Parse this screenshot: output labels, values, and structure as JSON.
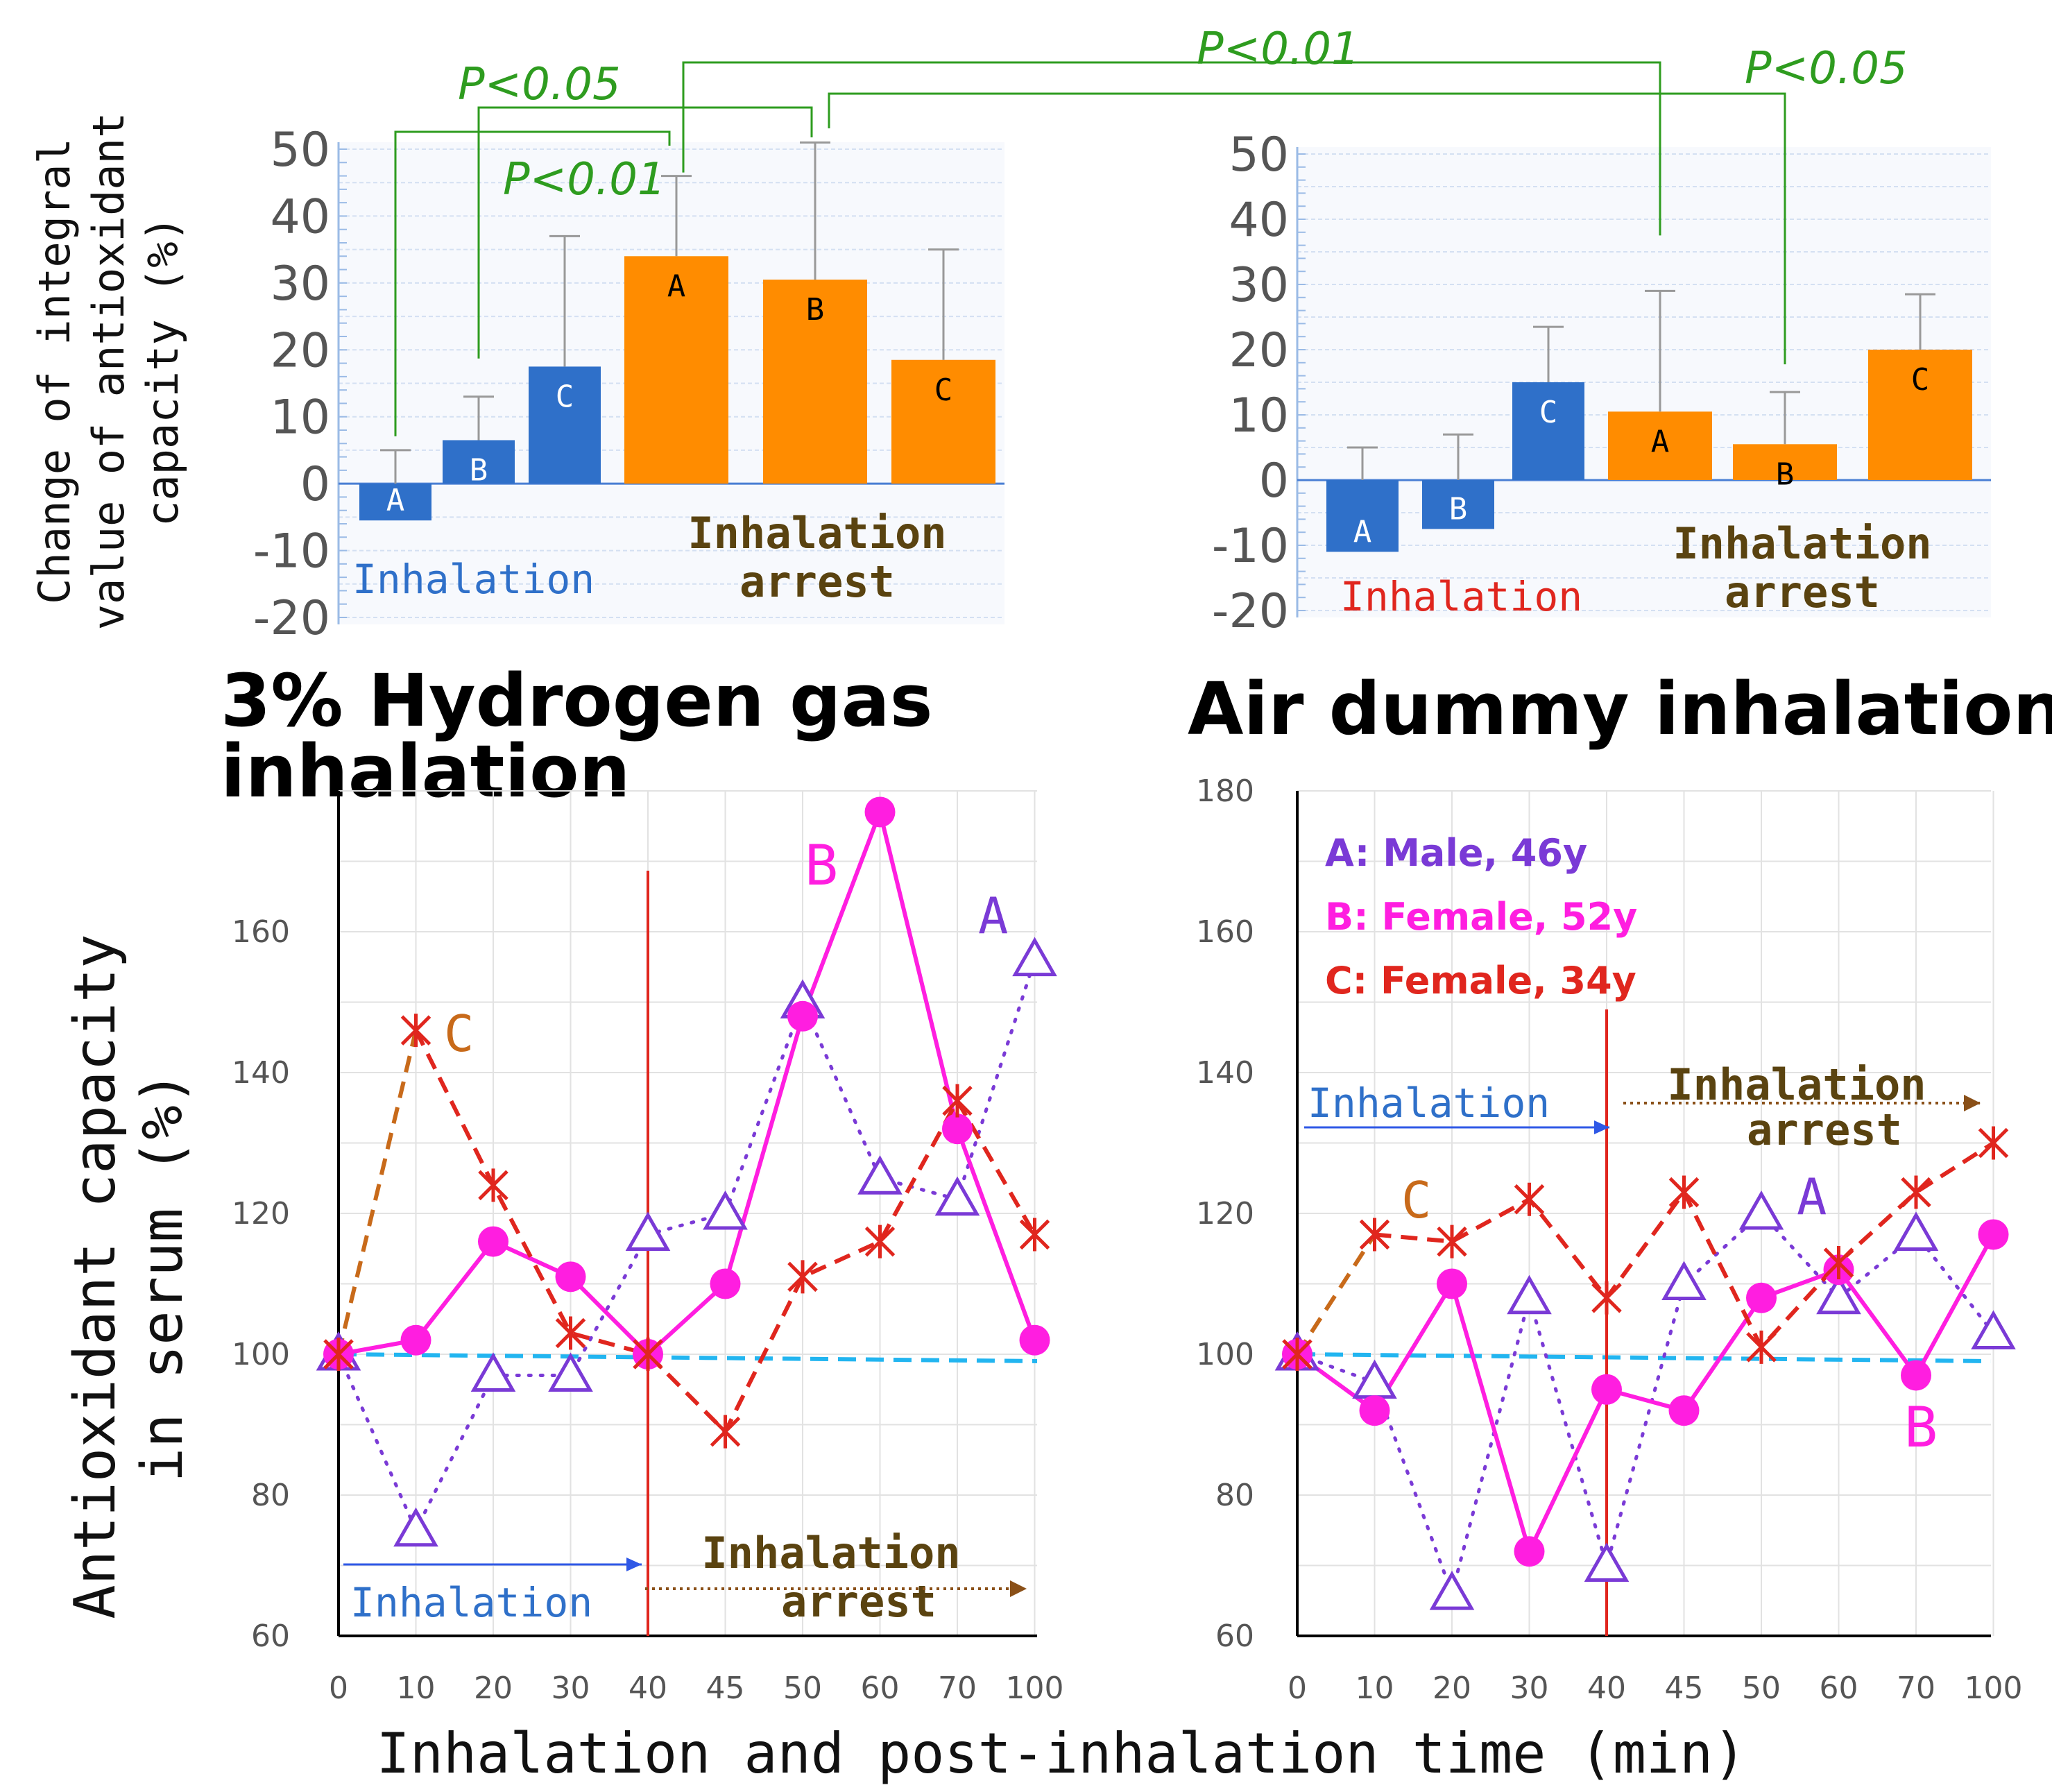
{
  "domain": "Chart",
  "shared": {
    "bar_ylabel_lines": [
      "Change of integral",
      "value of antioxidant",
      "capacity   (%)"
    ],
    "line_ylabel_lines": [
      "Antioxidant capacity",
      "in serum (%)"
    ],
    "xlabel": "Inhalation and post-inhalation time (min)",
    "inhalation_label": "Inhalation",
    "arrest_label_1": "Inhalation",
    "arrest_label_2": "arrest"
  },
  "titles": {
    "hydrogen_1": "3% Hydrogen gas",
    "hydrogen_2": "inhalation",
    "air": "Air dummy inhalation"
  },
  "legend": {
    "a": "A: Male, 46y",
    "b": "B: Female, 52y",
    "c": "C: Female, 34y"
  },
  "colors": {
    "blue_bar": "#2f70c9",
    "orange_bar": "#ff8c00",
    "series_a": "#7a3ad6",
    "series_b": "#ff1ee0",
    "series_c": "#e0261e",
    "series_c_early": "#c86a1a",
    "baseline": "#22b5f0",
    "divider": "#e0261e",
    "pvalue": "#2e9c1f",
    "arrest_text": "#5a4310"
  },
  "chart_data": [
    {
      "id": "hydrogen_bar",
      "type": "bar",
      "title": "3% Hydrogen gas inhalation",
      "ylabel": "Change of integral value of antioxidant capacity (%)",
      "ylim": [
        -20,
        50
      ],
      "yticks": [
        -20,
        -10,
        0,
        10,
        20,
        30,
        40,
        50
      ],
      "groups": [
        "Inhalation",
        "Inhalation arrest"
      ],
      "categories": [
        "A",
        "B",
        "C",
        "A",
        "B",
        "C"
      ],
      "category_group": [
        "Inhalation",
        "Inhalation",
        "Inhalation",
        "Inhalation arrest",
        "Inhalation arrest",
        "Inhalation arrest"
      ],
      "values": [
        -5.5,
        6.5,
        17.5,
        34,
        30.5,
        18.5
      ],
      "error_upper": [
        5,
        13,
        37,
        46,
        51,
        35
      ],
      "significance": [
        {
          "from": 0,
          "to": 3,
          "label": "P<0.05"
        },
        {
          "from": 1,
          "to": 4,
          "label": "P<0.01"
        }
      ]
    },
    {
      "id": "air_bar",
      "type": "bar",
      "title": "Air dummy inhalation",
      "ylabel": "Change of integral value of antioxidant capacity (%)",
      "ylim": [
        -20,
        50
      ],
      "yticks": [
        -20,
        -10,
        0,
        10,
        20,
        30,
        40,
        50
      ],
      "groups": [
        "Inhalation",
        "Inhalation arrest"
      ],
      "categories": [
        "A",
        "B",
        "C",
        "A",
        "B",
        "C"
      ],
      "category_group": [
        "Inhalation",
        "Inhalation",
        "Inhalation",
        "Inhalation arrest",
        "Inhalation arrest",
        "Inhalation arrest"
      ],
      "values": [
        -11,
        -7.5,
        15,
        10.5,
        5.5,
        20
      ],
      "error_upper": [
        5,
        7,
        23.5,
        29,
        13.5,
        28.5
      ],
      "significance": [
        {
          "from": "hydrogen_bar:3",
          "to": 3,
          "label": "P<0.01"
        },
        {
          "from": "hydrogen_bar:4",
          "to": 4,
          "label": "P<0.05"
        }
      ]
    },
    {
      "id": "hydrogen_line",
      "type": "line",
      "title": "3% Hydrogen gas inhalation",
      "xlabel": "Inhalation and post-inhalation time (min)",
      "ylabel": "Antioxidant capacity in serum (%)",
      "x": [
        "0",
        "10",
        "20",
        "30",
        "40",
        "45",
        "50",
        "60",
        "70",
        "100"
      ],
      "ylim": [
        60,
        180
      ],
      "yticks": [
        60,
        80,
        100,
        120,
        140,
        160
      ],
      "inhalation_end_index": 4,
      "series": [
        {
          "name": "A",
          "values": [
            100,
            75,
            97,
            97,
            117,
            120,
            150,
            125,
            122,
            156
          ]
        },
        {
          "name": "B",
          "values": [
            100,
            102,
            116,
            111,
            100,
            110,
            148,
            177,
            132,
            102
          ]
        },
        {
          "name": "C",
          "values": [
            100,
            146,
            124,
            103,
            100,
            89,
            111,
            116,
            136,
            117
          ]
        }
      ],
      "series_labels": [
        {
          "series": "A",
          "text": "A"
        },
        {
          "series": "B",
          "text": "B"
        },
        {
          "series": "C",
          "text": "C"
        }
      ]
    },
    {
      "id": "air_line",
      "type": "line",
      "title": "Air dummy inhalation",
      "xlabel": "Inhalation and post-inhalation time (min)",
      "ylabel": "Antioxidant capacity in serum (%)",
      "x": [
        "0",
        "10",
        "20",
        "30",
        "40",
        "45",
        "50",
        "60",
        "70",
        "100"
      ],
      "ylim": [
        60,
        180
      ],
      "yticks": [
        60,
        80,
        100,
        120,
        140,
        160,
        180
      ],
      "inhalation_end_index": 4,
      "series": [
        {
          "name": "A",
          "values": [
            100,
            96,
            66,
            108,
            70,
            110,
            120,
            108,
            117,
            103
          ]
        },
        {
          "name": "B",
          "values": [
            100,
            92,
            110,
            72,
            95,
            92,
            108,
            112,
            97,
            117
          ]
        },
        {
          "name": "C",
          "values": [
            100,
            117,
            116,
            122,
            108,
            123,
            101,
            113,
            123,
            130
          ]
        }
      ],
      "series_labels": [
        {
          "series": "A",
          "text": "A"
        },
        {
          "series": "B",
          "text": "B"
        },
        {
          "series": "C",
          "text": "C"
        }
      ]
    }
  ]
}
